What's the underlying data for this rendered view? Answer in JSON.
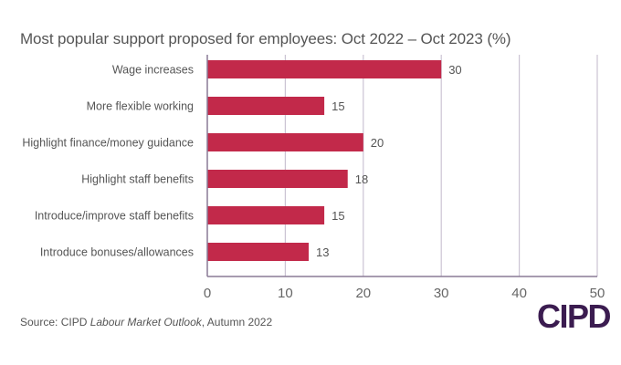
{
  "chart_data": {
    "type": "bar",
    "orientation": "horizontal",
    "title": "Most popular support proposed for employees: Oct 2022 – Oct 2023 (%)",
    "categories": [
      "Wage increases",
      "More flexible working",
      "Highlight finance/money guidance",
      "Highlight staff benefits",
      "Introduce/improve staff benefits",
      "Introduce bonuses/allowances"
    ],
    "values": [
      30,
      15,
      20,
      18,
      15,
      13
    ],
    "xlabel": "",
    "ylabel": "",
    "xlim": [
      0,
      50
    ],
    "xticks": [
      0,
      10,
      20,
      30,
      40,
      50
    ],
    "grid": true,
    "data_labels": true,
    "colors": {
      "bar": "#c2294a",
      "grid": "#cbc3d3",
      "axis": "#8a7a96"
    }
  },
  "footer": {
    "source_prefix": "Source: CIPD ",
    "source_italic": "Labour Market Outlook",
    "source_suffix": ", Autumn 2022"
  },
  "logo": {
    "text": "CIPD",
    "color": "#3b1c50"
  }
}
